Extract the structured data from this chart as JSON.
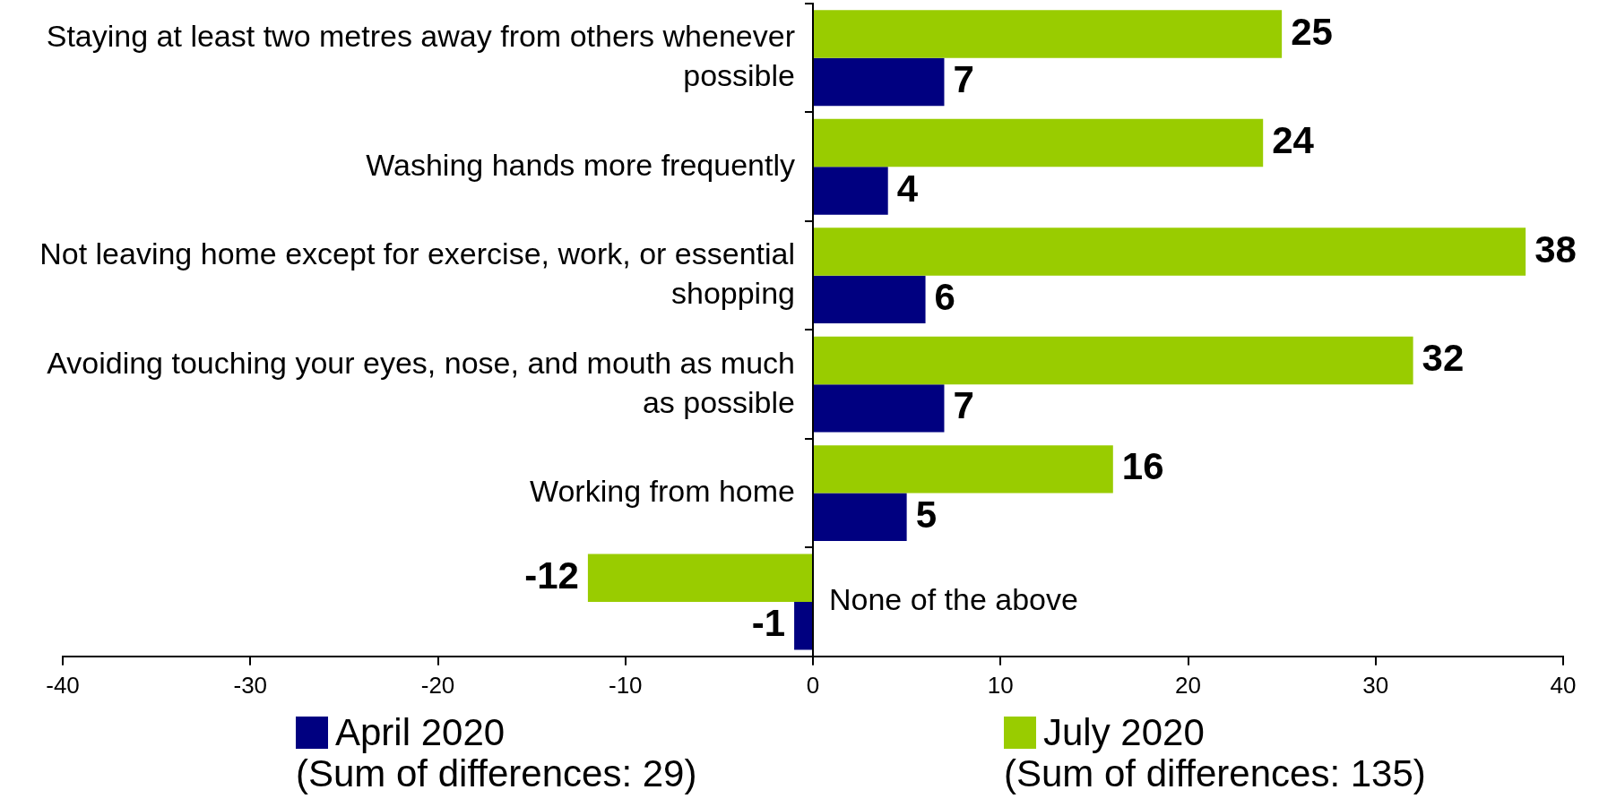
{
  "chart_data": {
    "type": "bar",
    "orientation": "horizontal",
    "categories": [
      "Staying at least two metres away from others whenever possible",
      "Washing hands more frequently",
      "Not leaving home except for exercise, work, or essential shopping",
      "Avoiding touching your eyes, nose, and mouth as much as possible",
      "Working from home",
      "None of the above"
    ],
    "series": [
      {
        "name": "April 2020",
        "color": "#000080",
        "values": [
          7,
          4,
          6,
          7,
          5,
          -1
        ]
      },
      {
        "name": "July 2020",
        "color": "#99cc00",
        "values": [
          25,
          24,
          38,
          32,
          16,
          -12
        ]
      }
    ],
    "xlim": [
      -40,
      40
    ],
    "xticks": [
      -40,
      -30,
      -20,
      -10,
      0,
      10,
      20,
      30,
      40
    ],
    "data_labels": true,
    "grid": false,
    "legend": "bottom",
    "annotations": [
      "(Sum of differences: 29)",
      "(Sum of differences: 135)"
    ]
  }
}
